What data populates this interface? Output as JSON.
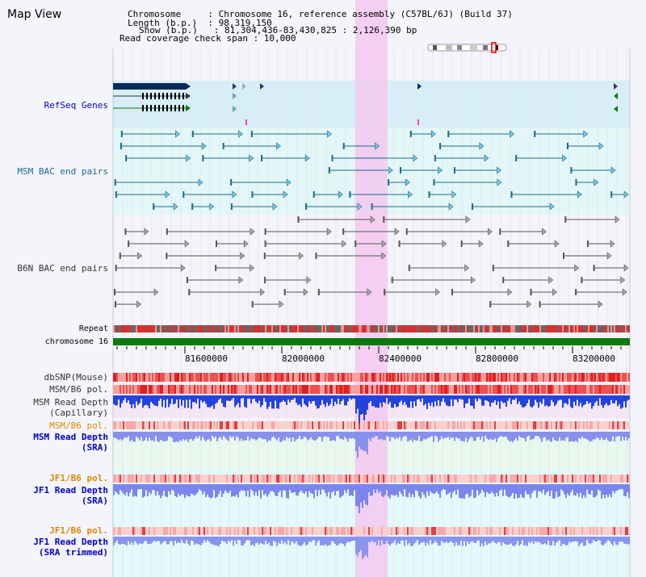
{
  "header": {
    "title": "Map View",
    "info": [
      "Chromosome     : Chromosome 16, reference assembly (C57BL/6J) (Build 37)",
      "Length (b.p.)  : 98,319,150",
      "Show (b.p.)   : 81,304,436-83,430,825 : 2,126,390 bp",
      "Read coverage check span : 10,000"
    ]
  },
  "tracks": {
    "refseq": "RefSeq Genes",
    "msm_bac": "MSM BAC end pairs",
    "b6n_bac": "B6N BAC end pairs",
    "repeat": "Repeat",
    "chromosome": "chromosome 16",
    "dbsnp": "dbSNP(Mouse)",
    "msm_b6_pol": "MSM/B6 pol.",
    "msm_depth_cap_1": "MSM Read Depth",
    "msm_depth_cap_2": "(Capillary)",
    "msm_b6_pol_2": "MSM/B6 pol.",
    "msm_depth_sra_1": "MSM Read Depth",
    "msm_depth_sra_2": "(SRA)",
    "jf1_b6_pol": "JF1/B6 pol.",
    "jf1_depth_sra_1": "JF1 Read Depth",
    "jf1_depth_sra_2": "(SRA)",
    "jf1_b6_pol_2": "JF1/B6 pol.",
    "jf1_depth_trim_1": "JF1 Read Depth",
    "jf1_depth_trim_2": "(SRA trimmed)"
  },
  "axis": {
    "ticks": [
      "81600000",
      "82000000",
      "82400000",
      "82800000",
      "83200000"
    ]
  },
  "colors": {
    "refseq_label": "#0000cc",
    "msm_label": "#1a6a8a",
    "b6n_label": "#333333",
    "pol_label_orange": "#dd8800",
    "depth_label_blue": "#0000cc",
    "highlight": "#f3c8ef",
    "chromosome_bar": "#0a7a0a",
    "bg_refseq": "#d6eef8",
    "bg_msm": "#e2f8f8",
    "bg_mint": "#e8f8ee",
    "bg_cyan": "#e2fafa"
  }
}
